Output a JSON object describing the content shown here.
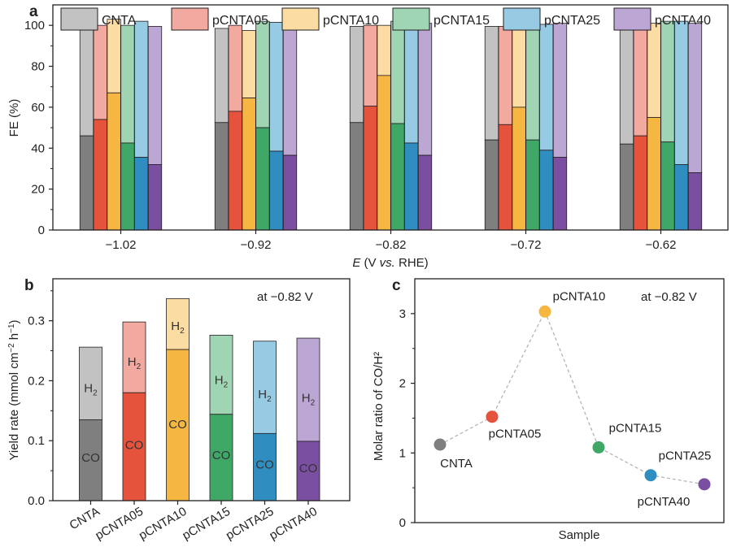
{
  "samples": [
    "CNTA",
    "pCNTA05",
    "pCNTA10",
    "pCNTA15",
    "pCNTA25",
    "pCNTA40"
  ],
  "colors": {
    "dark": [
      "#7f7f7f",
      "#e5533c",
      "#f5b742",
      "#3fa866",
      "#2f8dbf",
      "#7a4ea0"
    ],
    "light": [
      "#c2c2c2",
      "#f2aaa0",
      "#fbdca3",
      "#9fd5b3",
      "#97cae3",
      "#bca6d3"
    ]
  },
  "chart_data": [
    {
      "panel": "a",
      "type": "bar",
      "stacked": true,
      "title": "",
      "xlabel": [
        "E",
        " (V ",
        "vs.",
        " RHE)"
      ],
      "ylabel": "FE (%)",
      "ylim": [
        0,
        110
      ],
      "yticks": [
        0,
        20,
        40,
        60,
        80,
        100
      ],
      "categories": [
        "−1.02",
        "−0.92",
        "−0.82",
        "−0.72",
        "−0.62"
      ],
      "legend": [
        "CNTA",
        "pCNTA05",
        "pCNTA10",
        "pCNTA15",
        "pCNTA25",
        "pCNTA40"
      ],
      "legend_position": "top",
      "series": [
        {
          "name": "CNTA",
          "co_fe": [
            46,
            52.5,
            52.5,
            44,
            42
          ],
          "total_fe": [
            100,
            98.5,
            99.5,
            99.5,
            100
          ]
        },
        {
          "name": "pCNTA05",
          "co_fe": [
            54,
            58,
            60.5,
            51.5,
            46
          ],
          "total_fe": [
            100,
            100,
            100,
            99.5,
            102
          ]
        },
        {
          "name": "pCNTA10",
          "co_fe": [
            67,
            64.5,
            75.5,
            60,
            55
          ],
          "total_fe": [
            103,
            97.5,
            100,
            99.5,
            101
          ]
        },
        {
          "name": "pCNTA15",
          "co_fe": [
            42.5,
            50,
            52,
            44,
            43
          ],
          "total_fe": [
            100,
            102,
            102,
            100.5,
            102
          ]
        },
        {
          "name": "pCNTA25",
          "co_fe": [
            35.5,
            38.5,
            42.5,
            39,
            32
          ],
          "total_fe": [
            102,
            101.5,
            102.5,
            100.5,
            102
          ]
        },
        {
          "name": "pCNTA40",
          "co_fe": [
            32,
            36.5,
            36.5,
            35.5,
            28
          ],
          "total_fe": [
            99.5,
            101,
            101,
            101,
            101
          ]
        }
      ]
    },
    {
      "panel": "b",
      "type": "bar",
      "stacked": true,
      "annotation": "at −0.82 V",
      "ylabel": [
        "Yield rate (mmol cm",
        "−2",
        " h",
        "−1",
        ")"
      ],
      "ylim": [
        0,
        0.37
      ],
      "yticks": [
        0.0,
        0.1,
        0.2,
        0.3
      ],
      "ytick_labels": [
        "0.0",
        "0.1",
        "0.2",
        "0.3"
      ],
      "categories": [
        "CNTA",
        "pCNTA05",
        "pCNTA10",
        "pCNTA15",
        "pCNTA25",
        "pCNTA40"
      ],
      "co_label": "CO",
      "h2_label": [
        "H",
        "2"
      ],
      "series": [
        {
          "name": "CO",
          "values": [
            0.135,
            0.18,
            0.252,
            0.144,
            0.112,
            0.099
          ]
        },
        {
          "name": "H2",
          "values": [
            0.121,
            0.118,
            0.085,
            0.132,
            0.154,
            0.172
          ]
        }
      ]
    },
    {
      "panel": "c",
      "type": "scatter",
      "annotation": "at −0.82 V",
      "xlabel": "Sample",
      "ylabel": "Molar ratio of CO/H²",
      "ylim": [
        0,
        3.5
      ],
      "yticks": [
        0,
        1,
        2,
        3
      ],
      "points": [
        {
          "label": "CNTA",
          "value": 1.12
        },
        {
          "label": "pCNTA05",
          "value": 1.52
        },
        {
          "label": "pCNTA10",
          "value": 3.03
        },
        {
          "label": "pCNTA15",
          "value": 1.08
        },
        {
          "label": "pCNTA25",
          "value": 0.68
        },
        {
          "label": "pCNTA40",
          "value": 0.55
        }
      ]
    }
  ]
}
